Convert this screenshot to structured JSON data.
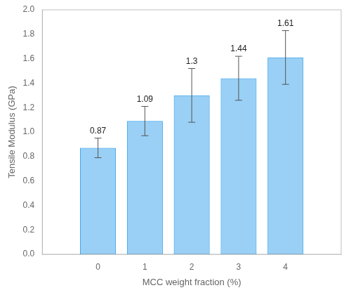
{
  "chart_data": {
    "type": "bar",
    "x": [
      0,
      1,
      2,
      3,
      4
    ],
    "values": [
      0.87,
      1.09,
      1.3,
      1.44,
      1.61
    ],
    "errors": [
      0.08,
      0.12,
      0.22,
      0.18,
      0.22
    ],
    "xlabel": "MCC weight fraction (%)",
    "ylabel": "Tensile Modulus (GPa)",
    "xlim": [
      -0.55,
      4.55
    ],
    "ylim": [
      0.0,
      2.0
    ],
    "yticks": [
      {
        "value": 0.0,
        "label": "0.0"
      },
      0.2,
      0.4,
      0.6,
      0.8,
      {
        "value": 1.0,
        "label": "1.0"
      },
      1.2,
      1.4,
      1.6,
      1.8,
      {
        "value": 2.0,
        "label": "2.0"
      }
    ],
    "xticks": [
      0,
      1,
      2,
      3,
      4
    ],
    "grid": false,
    "data_labels": true
  }
}
